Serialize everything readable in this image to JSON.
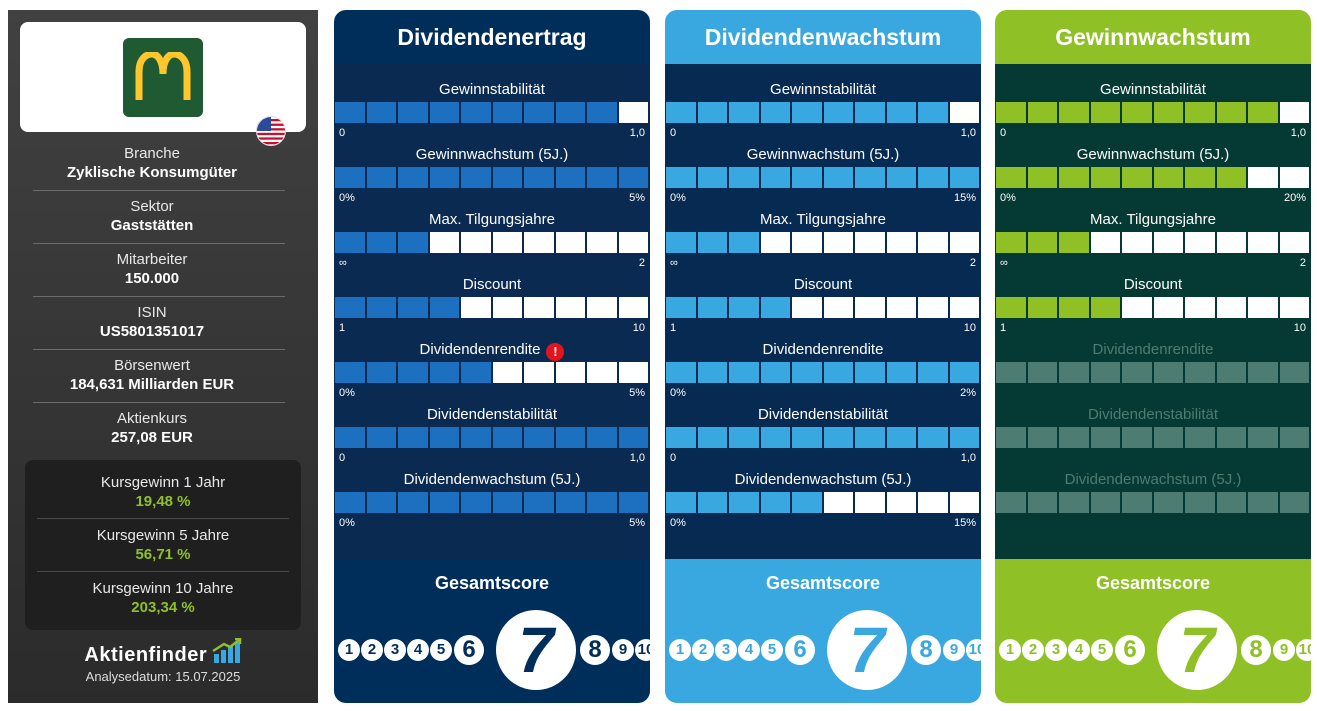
{
  "company": {
    "logo_icon": "mcdonalds-golden-arches-logo",
    "flag_icon": "us-flag-icon",
    "details": [
      {
        "label": "Branche",
        "value": "Zyklische Konsumgüter"
      },
      {
        "label": "Sektor",
        "value": "Gaststätten"
      },
      {
        "label": "Mitarbeiter",
        "value": "150.000"
      },
      {
        "label": "ISIN",
        "value": "US5801351017"
      },
      {
        "label": "Börsenwert",
        "value": "184,631 Milliarden EUR"
      },
      {
        "label": "Aktienkurs",
        "value": "257,08 EUR"
      }
    ],
    "performance": [
      {
        "label": "Kursgewinn 1 Jahr",
        "value": "19,48 %"
      },
      {
        "label": "Kursgewinn 5 Jahre",
        "value": "56,71 %"
      },
      {
        "label": "Kursgewinn 10 Jahre",
        "value": "203,34 %"
      }
    ],
    "brand": "Aktienfinder",
    "analysis_date": "Analysedatum: 15.07.2025"
  },
  "colors": {
    "panel1_bg": "#002e5b",
    "panel1_body": "#0b2a52",
    "panel1_fill": "#1d6fbf",
    "panel2_bg": "#3aa8e0",
    "panel2_body": "#072a52",
    "panel2_fill": "#3aa8e0",
    "panel3_bg": "#8fc127",
    "panel3_body": "#053a34",
    "panel3_fill": "#8fc127",
    "panel3_disabled": "#4d7c72",
    "performance_green": "#8fc127",
    "warning_red": "#e3141b"
  },
  "panels": [
    {
      "title": "Dividendenertrag",
      "metrics": [
        {
          "name": "Gewinnstabilität",
          "filled": 9,
          "min": "0",
          "max": "1,0"
        },
        {
          "name": "Gewinnwachstum (5J.)",
          "filled": 10,
          "min": "0%",
          "max": "5%"
        },
        {
          "name": "Max. Tilgungsjahre",
          "filled": 3,
          "min": "∞",
          "max": "2"
        },
        {
          "name": "Discount",
          "filled": 4,
          "min": "1",
          "max": "10"
        },
        {
          "name": "Dividendenrendite",
          "filled": 5,
          "min": "0%",
          "max": "5%",
          "warning": "!"
        },
        {
          "name": "Dividendenstabilität",
          "filled": 10,
          "min": "0",
          "max": "1,0"
        },
        {
          "name": "Dividendenwachstum (5J.)",
          "filled": 10,
          "min": "0%",
          "max": "5%"
        }
      ],
      "score_label": "Gesamtscore",
      "score": 7
    },
    {
      "title": "Dividendenwachstum",
      "metrics": [
        {
          "name": "Gewinnstabilität",
          "filled": 9,
          "min": "0",
          "max": "1,0"
        },
        {
          "name": "Gewinnwachstum (5J.)",
          "filled": 10,
          "min": "0%",
          "max": "15%"
        },
        {
          "name": "Max. Tilgungsjahre",
          "filled": 3,
          "min": "∞",
          "max": "2"
        },
        {
          "name": "Discount",
          "filled": 4,
          "min": "1",
          "max": "10"
        },
        {
          "name": "Dividendenrendite",
          "filled": 10,
          "min": "0%",
          "max": "2%"
        },
        {
          "name": "Dividendenstabilität",
          "filled": 10,
          "min": "0",
          "max": "1,0"
        },
        {
          "name": "Dividendenwachstum (5J.)",
          "filled": 5,
          "min": "0%",
          "max": "15%"
        }
      ],
      "score_label": "Gesamtscore",
      "score": 7
    },
    {
      "title": "Gewinnwachstum",
      "metrics": [
        {
          "name": "Gewinnstabilität",
          "filled": 9,
          "min": "0",
          "max": "1,0"
        },
        {
          "name": "Gewinnwachstum (5J.)",
          "filled": 8,
          "min": "0%",
          "max": "20%"
        },
        {
          "name": "Max. Tilgungsjahre",
          "filled": 3,
          "min": "∞",
          "max": "2"
        },
        {
          "name": "Discount",
          "filled": 4,
          "min": "1",
          "max": "10"
        },
        {
          "name": "Dividendenrendite",
          "disabled": true
        },
        {
          "name": "Dividendenstabilität",
          "disabled": true
        },
        {
          "name": "Dividendenwachstum (5J.)",
          "disabled": true
        }
      ],
      "score_label": "Gesamtscore",
      "score": 7
    }
  ],
  "score_scale": [
    "1",
    "2",
    "3",
    "4",
    "5",
    "6",
    "7",
    "8",
    "9",
    "10"
  ]
}
